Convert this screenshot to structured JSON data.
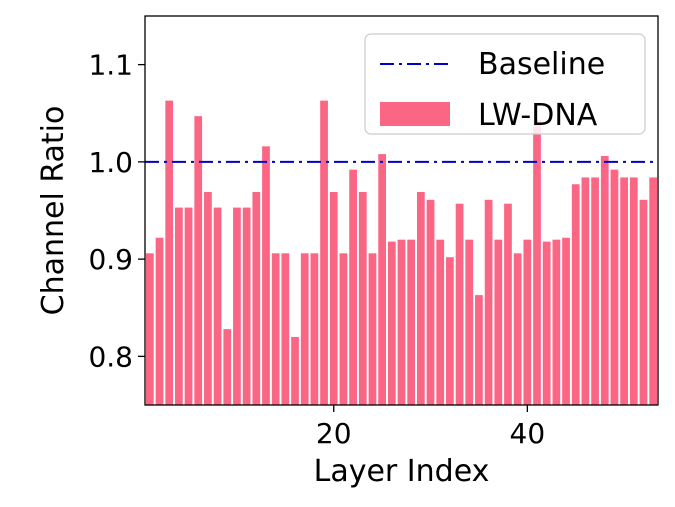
{
  "chart_data": {
    "type": "bar",
    "xlabel": "Layer Index",
    "ylabel": "Channel Ratio",
    "xlim": [
      0.5,
      53.5
    ],
    "ylim": [
      0.75,
      1.15
    ],
    "xticks": [
      20,
      40
    ],
    "yticks": [
      0.8,
      0.9,
      1.0,
      1.1
    ],
    "ytick_labels": [
      "0.8",
      "0.9",
      "1.0",
      "1.1"
    ],
    "grid": false,
    "legend_position": "top-right",
    "colors": {
      "bars": "#fc6685",
      "baseline": "#0000cc"
    },
    "baseline": {
      "name": "Baseline",
      "value": 1.0,
      "style": "dash-dot"
    },
    "series": [
      {
        "name": "LW-DNA",
        "x": [
          1,
          2,
          3,
          4,
          5,
          6,
          7,
          8,
          9,
          10,
          11,
          12,
          13,
          14,
          15,
          16,
          17,
          18,
          19,
          20,
          21,
          22,
          23,
          24,
          25,
          26,
          27,
          28,
          29,
          30,
          31,
          32,
          33,
          34,
          35,
          36,
          37,
          38,
          39,
          40,
          41,
          42,
          43,
          44,
          45,
          46,
          47,
          48,
          49,
          50,
          51,
          52,
          53
        ],
        "values": [
          0.906,
          0.922,
          1.063,
          0.953,
          0.953,
          1.047,
          0.969,
          0.953,
          0.828,
          0.953,
          0.953,
          0.969,
          1.016,
          0.906,
          0.906,
          0.82,
          0.906,
          0.906,
          1.063,
          0.969,
          0.906,
          0.992,
          0.969,
          0.906,
          1.008,
          0.918,
          0.92,
          0.92,
          0.969,
          0.961,
          0.92,
          0.902,
          0.957,
          0.92,
          0.863,
          0.961,
          0.92,
          0.957,
          0.906,
          0.92,
          1.043,
          0.918,
          0.92,
          0.922,
          0.977,
          0.984,
          0.984,
          1.006,
          0.992,
          0.984,
          0.984,
          0.961,
          0.984
        ]
      }
    ]
  }
}
